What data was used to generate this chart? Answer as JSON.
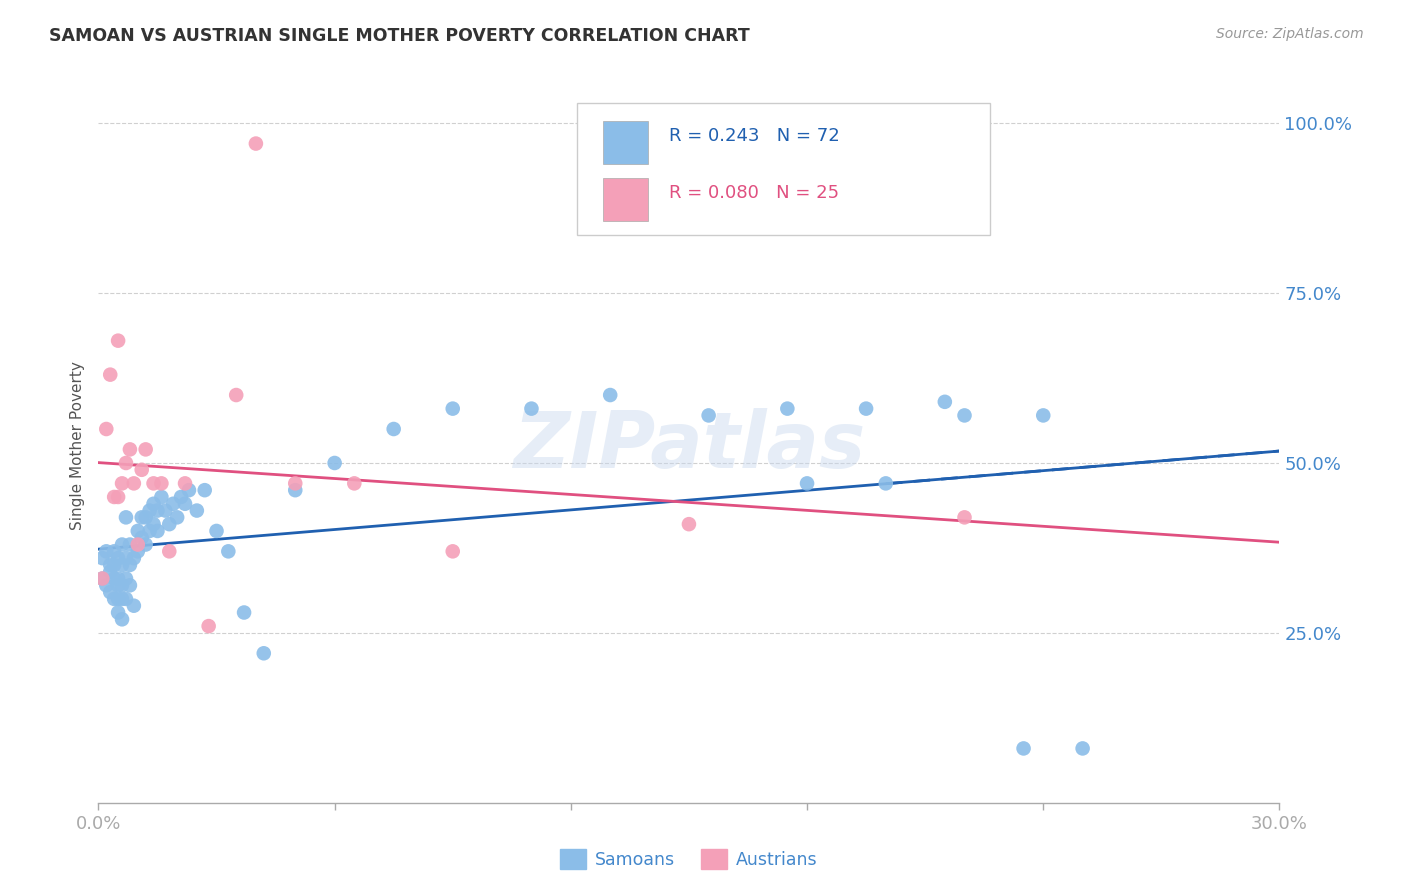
{
  "title": "SAMOAN VS AUSTRIAN SINGLE MOTHER POVERTY CORRELATION CHART",
  "source": "Source: ZipAtlas.com",
  "ylabel": "Single Mother Poverty",
  "ytick_labels": [
    "100.0%",
    "75.0%",
    "50.0%",
    "25.0%"
  ],
  "ytick_values": [
    1.0,
    0.75,
    0.5,
    0.25
  ],
  "xlim": [
    0.0,
    0.3
  ],
  "ylim": [
    0.0,
    1.05
  ],
  "watermark": "ZIPatlas",
  "samoan_color": "#8bbde8",
  "austrian_color": "#f4a0b8",
  "samoan_R": 0.243,
  "samoan_N": 72,
  "austrian_R": 0.08,
  "austrian_N": 25,
  "samoan_line_color": "#2060b0",
  "austrian_line_color": "#e05080",
  "grid_color": "#d0d0d0",
  "tick_label_color": "#4488cc",
  "title_color": "#333333",
  "source_color": "#999999",
  "ylabel_color": "#555555",
  "samoan_x": [
    0.001,
    0.001,
    0.002,
    0.002,
    0.003,
    0.003,
    0.003,
    0.004,
    0.004,
    0.004,
    0.004,
    0.005,
    0.005,
    0.005,
    0.005,
    0.005,
    0.006,
    0.006,
    0.006,
    0.006,
    0.006,
    0.007,
    0.007,
    0.007,
    0.007,
    0.008,
    0.008,
    0.008,
    0.009,
    0.009,
    0.01,
    0.01,
    0.011,
    0.011,
    0.012,
    0.012,
    0.013,
    0.013,
    0.014,
    0.014,
    0.015,
    0.015,
    0.016,
    0.017,
    0.018,
    0.019,
    0.02,
    0.021,
    0.022,
    0.023,
    0.025,
    0.027,
    0.03,
    0.033,
    0.037,
    0.042,
    0.05,
    0.06,
    0.075,
    0.09,
    0.11,
    0.13,
    0.155,
    0.175,
    0.195,
    0.215,
    0.235,
    0.25,
    0.22,
    0.24,
    0.18,
    0.2
  ],
  "samoan_y": [
    0.33,
    0.36,
    0.32,
    0.37,
    0.34,
    0.35,
    0.31,
    0.33,
    0.37,
    0.3,
    0.35,
    0.33,
    0.36,
    0.32,
    0.3,
    0.28,
    0.35,
    0.32,
    0.3,
    0.27,
    0.38,
    0.36,
    0.33,
    0.3,
    0.42,
    0.38,
    0.35,
    0.32,
    0.36,
    0.29,
    0.4,
    0.37,
    0.42,
    0.39,
    0.42,
    0.38,
    0.43,
    0.4,
    0.44,
    0.41,
    0.43,
    0.4,
    0.45,
    0.43,
    0.41,
    0.44,
    0.42,
    0.45,
    0.44,
    0.46,
    0.43,
    0.46,
    0.4,
    0.37,
    0.28,
    0.22,
    0.46,
    0.5,
    0.55,
    0.58,
    0.58,
    0.6,
    0.57,
    0.58,
    0.58,
    0.59,
    0.08,
    0.08,
    0.57,
    0.57,
    0.47,
    0.47
  ],
  "austrian_x": [
    0.001,
    0.002,
    0.003,
    0.004,
    0.005,
    0.005,
    0.006,
    0.007,
    0.008,
    0.009,
    0.01,
    0.011,
    0.012,
    0.014,
    0.016,
    0.018,
    0.022,
    0.028,
    0.035,
    0.04,
    0.05,
    0.065,
    0.09,
    0.15,
    0.22
  ],
  "austrian_y": [
    0.33,
    0.55,
    0.63,
    0.45,
    0.45,
    0.68,
    0.47,
    0.5,
    0.52,
    0.47,
    0.38,
    0.49,
    0.52,
    0.47,
    0.47,
    0.37,
    0.47,
    0.26,
    0.6,
    0.97,
    0.47,
    0.47,
    0.37,
    0.41,
    0.42
  ]
}
